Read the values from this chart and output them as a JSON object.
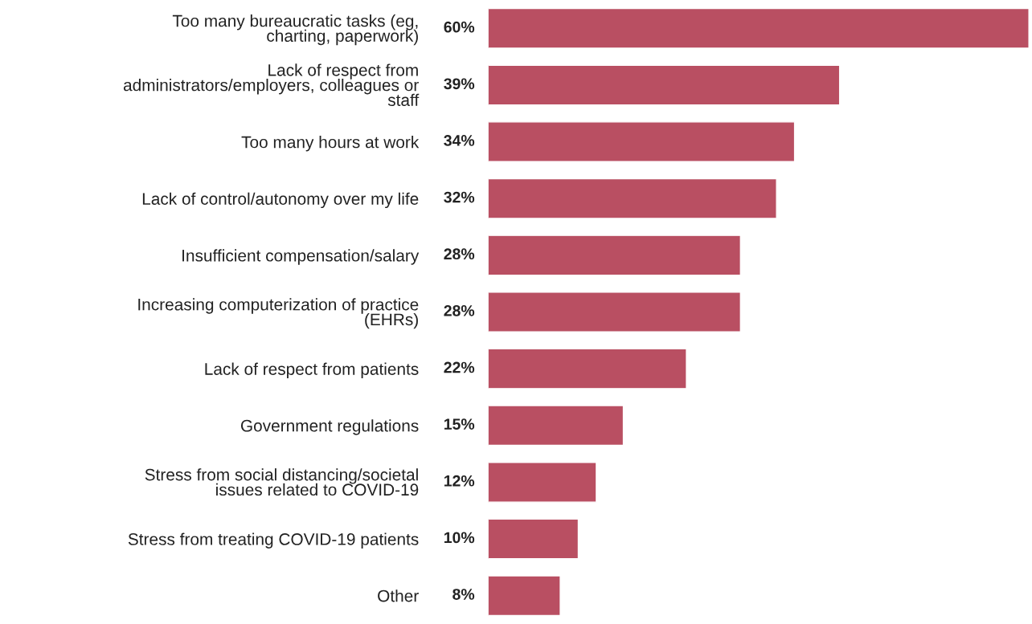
{
  "chart_data": {
    "type": "bar",
    "orientation": "horizontal",
    "categories": [
      "Too many bureaucratic tasks (eg,\ncharting, paperwork)",
      "Lack of respect from\nadministrators/employers, colleagues or\nstaff",
      "Too many hours at work",
      "Lack of control/autonomy over my life",
      "Insufficient compensation/salary",
      "Increasing computerization of practice\n(EHRs)",
      "Lack of respect from patients",
      "Government regulations",
      "Stress from social distancing/societal\nissues related to COVID-19",
      "Stress from treating COVID-19 patients",
      "Other"
    ],
    "values": [
      60,
      39,
      34,
      32,
      28,
      28,
      22,
      15,
      12,
      10,
      8
    ],
    "value_labels": [
      "60%",
      "39%",
      "34%",
      "32%",
      "28%",
      "28%",
      "22%",
      "15%",
      "12%",
      "10%",
      "8%"
    ],
    "color": "#b94f62"
  }
}
